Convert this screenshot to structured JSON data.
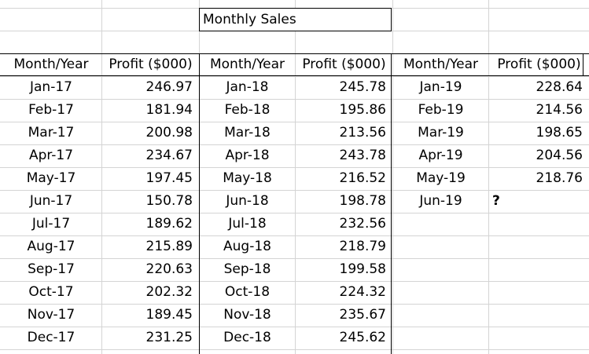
{
  "sheet": {
    "title": "Monthly Sales",
    "headers": [
      "Month/Year",
      "Profit ($000)",
      "Month/Year",
      "Profit ($000)",
      "Month/Year",
      "Profit ($000)"
    ],
    "rows": [
      [
        "Jan-17",
        "246.97",
        "Jan-18",
        "245.78",
        "Jan-19",
        "228.64"
      ],
      [
        "Feb-17",
        "181.94",
        "Feb-18",
        "195.86",
        "Feb-19",
        "214.56"
      ],
      [
        "Mar-17",
        "200.98",
        "Mar-18",
        "213.56",
        "Mar-19",
        "198.65"
      ],
      [
        "Apr-17",
        "234.67",
        "Apr-18",
        "243.78",
        "Apr-19",
        "204.56"
      ],
      [
        "May-17",
        "197.45",
        "May-18",
        "216.52",
        "May-19",
        "218.76"
      ],
      [
        "Jun-17",
        "150.78",
        "Jun-18",
        "198.78",
        "Jun-19",
        "?"
      ],
      [
        "Jul-17",
        "189.62",
        "Jul-18",
        "232.56",
        "",
        ""
      ],
      [
        "Aug-17",
        "215.89",
        "Aug-18",
        "218.79",
        "",
        ""
      ],
      [
        "Sep-17",
        "220.63",
        "Sep-18",
        "199.58",
        "",
        ""
      ],
      [
        "Oct-17",
        "202.32",
        "Oct-18",
        "224.32",
        "",
        ""
      ],
      [
        "Nov-17",
        "189.45",
        "Nov-18",
        "235.67",
        "",
        ""
      ],
      [
        "Dec-17",
        "231.25",
        "Dec-18",
        "245.62",
        "",
        ""
      ]
    ]
  }
}
